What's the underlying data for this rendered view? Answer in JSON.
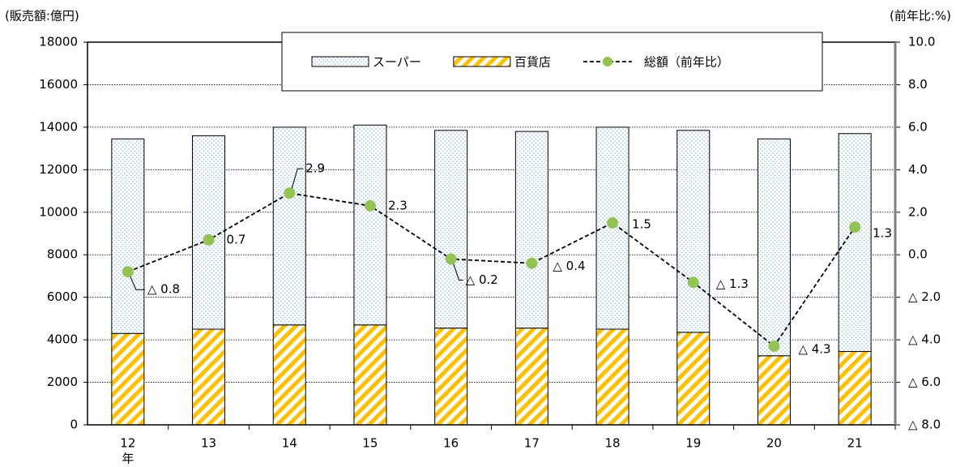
{
  "chart_data": {
    "type": "bar",
    "stacked": true,
    "y_label": "(販売額:億円)",
    "y2_label": "(前年比:%)",
    "x_unit": "年",
    "categories": [
      "12",
      "13",
      "14",
      "15",
      "16",
      "17",
      "18",
      "19",
      "20",
      "21"
    ],
    "series": [
      {
        "name": "百貨店",
        "color": "#ffc000",
        "pattern": "stripes",
        "values": [
          4300,
          4500,
          4700,
          4700,
          4550,
          4550,
          4500,
          4350,
          3250,
          3450
        ]
      },
      {
        "name": "スーパー",
        "color": "#9dc3e6",
        "pattern": "dots",
        "values": [
          9150,
          9100,
          9300,
          9400,
          9300,
          9250,
          9500,
          9500,
          10200,
          10250
        ]
      },
      {
        "name": "総額（前年比）",
        "type": "line",
        "axis": "y2",
        "color": "#92c353",
        "dash": true,
        "values": [
          -0.8,
          0.7,
          2.9,
          2.3,
          -0.2,
          -0.4,
          1.5,
          -1.3,
          -4.3,
          1.3
        ],
        "value_labels": [
          "△ 0.8",
          "0.7",
          "2.9",
          "2.3",
          "△ 0.2",
          "△ 0.4",
          "1.5",
          "△ 1.3",
          "△ 4.3",
          "1.3"
        ]
      }
    ],
    "legend_order": [
      1,
      0,
      2
    ],
    "ylim": [
      0,
      18000
    ],
    "yticks": [
      0,
      2000,
      4000,
      6000,
      8000,
      10000,
      12000,
      14000,
      16000,
      18000
    ],
    "y2lim": [
      -8,
      10
    ],
    "y2ticks": [
      {
        "value": -8,
        "label": "△ 8.0"
      },
      {
        "value": -6,
        "label": "△ 6.0"
      },
      {
        "value": -4,
        "label": "△ 4.0"
      },
      {
        "value": -2,
        "label": "△ 2.0"
      },
      {
        "value": 0,
        "label": "0.0"
      },
      {
        "value": 2,
        "label": "2.0"
      },
      {
        "value": 4,
        "label": "4.0"
      },
      {
        "value": 6,
        "label": "6.0"
      },
      {
        "value": 8,
        "label": "8.0"
      },
      {
        "value": 10,
        "label": "10.0"
      }
    ],
    "grid": true
  }
}
